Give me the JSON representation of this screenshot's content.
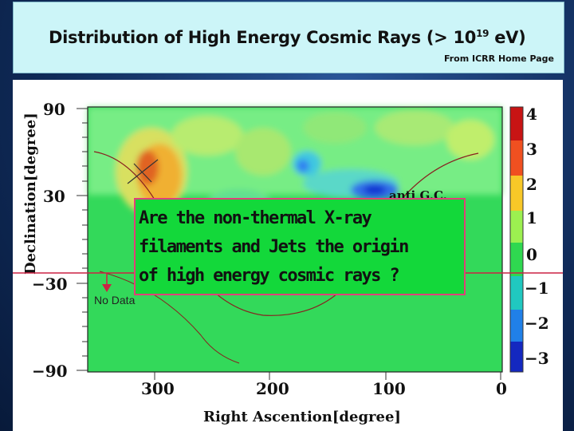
{
  "header": {
    "title_main": "Distribution of High Energy Cosmic Rays (> 10",
    "title_exp": "19",
    "title_unit": " eV)",
    "credit": "From ICRR Home Page"
  },
  "plot": {
    "ylabel": "Declination[degree]",
    "xlabel": "Right Ascention[degree]",
    "y_ticks": [
      "90",
      "30",
      "−30",
      "−90"
    ],
    "x_ticks": [
      "300",
      "200",
      "100",
      "0"
    ],
    "colorbar_ticks": [
      "4",
      "3",
      "2",
      "1",
      "0",
      "−1",
      "−2",
      "−3"
    ],
    "overlay_label": "anti G.C."
  },
  "callout": {
    "line1": "Are the non-thermal X-ray",
    "line2": "filaments and Jets the origin",
    "line3": "of high energy cosmic rays ?"
  },
  "annotation": {
    "no_data": "No Data"
  }
}
